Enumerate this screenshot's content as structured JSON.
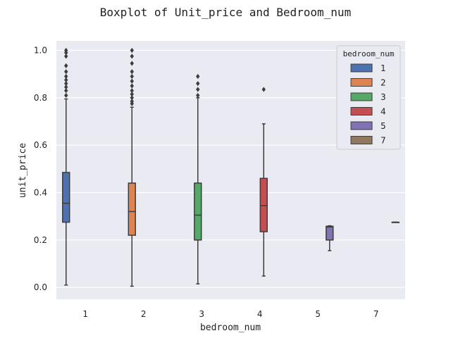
{
  "chart_data": {
    "type": "box",
    "title": "Boxplot of Unit_price and Bedroom_num",
    "xlabel": "bedroom_num",
    "ylabel": "unit_price",
    "categories": [
      "1",
      "2",
      "3",
      "4",
      "5",
      "7"
    ],
    "ylim": [
      -0.05,
      1.04
    ],
    "yticks": [
      "0.0",
      "0.2",
      "0.4",
      "0.6",
      "0.8",
      "1.0"
    ],
    "grid": true,
    "legend": {
      "title": "bedroom_num",
      "position": "top-right",
      "entries": [
        {
          "label": "1",
          "color": "#4c72b0"
        },
        {
          "label": "2",
          "color": "#dd8452"
        },
        {
          "label": "3",
          "color": "#55a868"
        },
        {
          "label": "4",
          "color": "#c44e52"
        },
        {
          "label": "5",
          "color": "#8172b3"
        },
        {
          "label": "7",
          "color": "#937860"
        }
      ]
    },
    "series": [
      {
        "name": "1",
        "category": "1",
        "color": "#4c72b0",
        "whislo": 0.01,
        "q1": 0.275,
        "median": 0.355,
        "q3": 0.485,
        "whishi": 0.795,
        "fliers": [
          0.81,
          0.83,
          0.845,
          0.86,
          0.875,
          0.89,
          0.91,
          0.935,
          0.975,
          0.99,
          1.0
        ]
      },
      {
        "name": "2",
        "category": "2",
        "color": "#dd8452",
        "whislo": 0.005,
        "q1": 0.22,
        "median": 0.32,
        "q3": 0.44,
        "whishi": 0.76,
        "fliers": [
          0.775,
          0.785,
          0.8,
          0.815,
          0.83,
          0.85,
          0.87,
          0.89,
          0.91,
          0.945,
          0.975,
          1.0
        ]
      },
      {
        "name": "3",
        "category": "3",
        "color": "#55a868",
        "whislo": 0.015,
        "q1": 0.2,
        "median": 0.305,
        "q3": 0.44,
        "whishi": 0.8,
        "fliers": [
          0.81,
          0.835,
          0.86,
          0.89
        ]
      },
      {
        "name": "4",
        "category": "4",
        "color": "#c44e52",
        "whislo": 0.048,
        "q1": 0.235,
        "median": 0.345,
        "q3": 0.46,
        "whishi": 0.69,
        "fliers": [
          0.835
        ]
      },
      {
        "name": "5",
        "category": "5",
        "color": "#8172b3",
        "whislo": 0.155,
        "q1": 0.2,
        "median": 0.255,
        "q3": 0.258,
        "whishi": 0.26,
        "fliers": []
      },
      {
        "name": "7",
        "category": "7",
        "color": "#937860",
        "whislo": 0.275,
        "q1": 0.275,
        "median": 0.275,
        "q3": 0.275,
        "whishi": 0.275,
        "fliers": []
      }
    ]
  }
}
